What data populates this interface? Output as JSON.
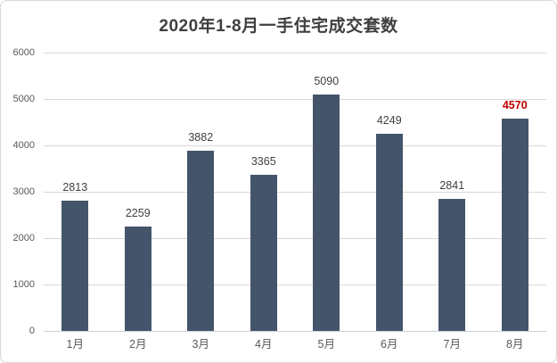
{
  "chart_data": {
    "type": "bar",
    "title": "2020年1-8月一手住宅成交套数",
    "categories": [
      "1月",
      "2月",
      "3月",
      "4月",
      "5月",
      "6月",
      "7月",
      "8月"
    ],
    "values": [
      2813,
      2259,
      3882,
      3365,
      5090,
      4249,
      2841,
      4570
    ],
    "yticks": [
      0,
      1000,
      2000,
      3000,
      4000,
      5000,
      6000
    ],
    "ylim": [
      0,
      6000
    ],
    "grid": true,
    "legend": "none",
    "bar_color": "#44546A",
    "value_label_color": "#404040",
    "axis_tick_color": "#595959",
    "gridline_color": "#D9D9D9",
    "highlight_index": 7,
    "highlight_label_color": "#C00000"
  }
}
